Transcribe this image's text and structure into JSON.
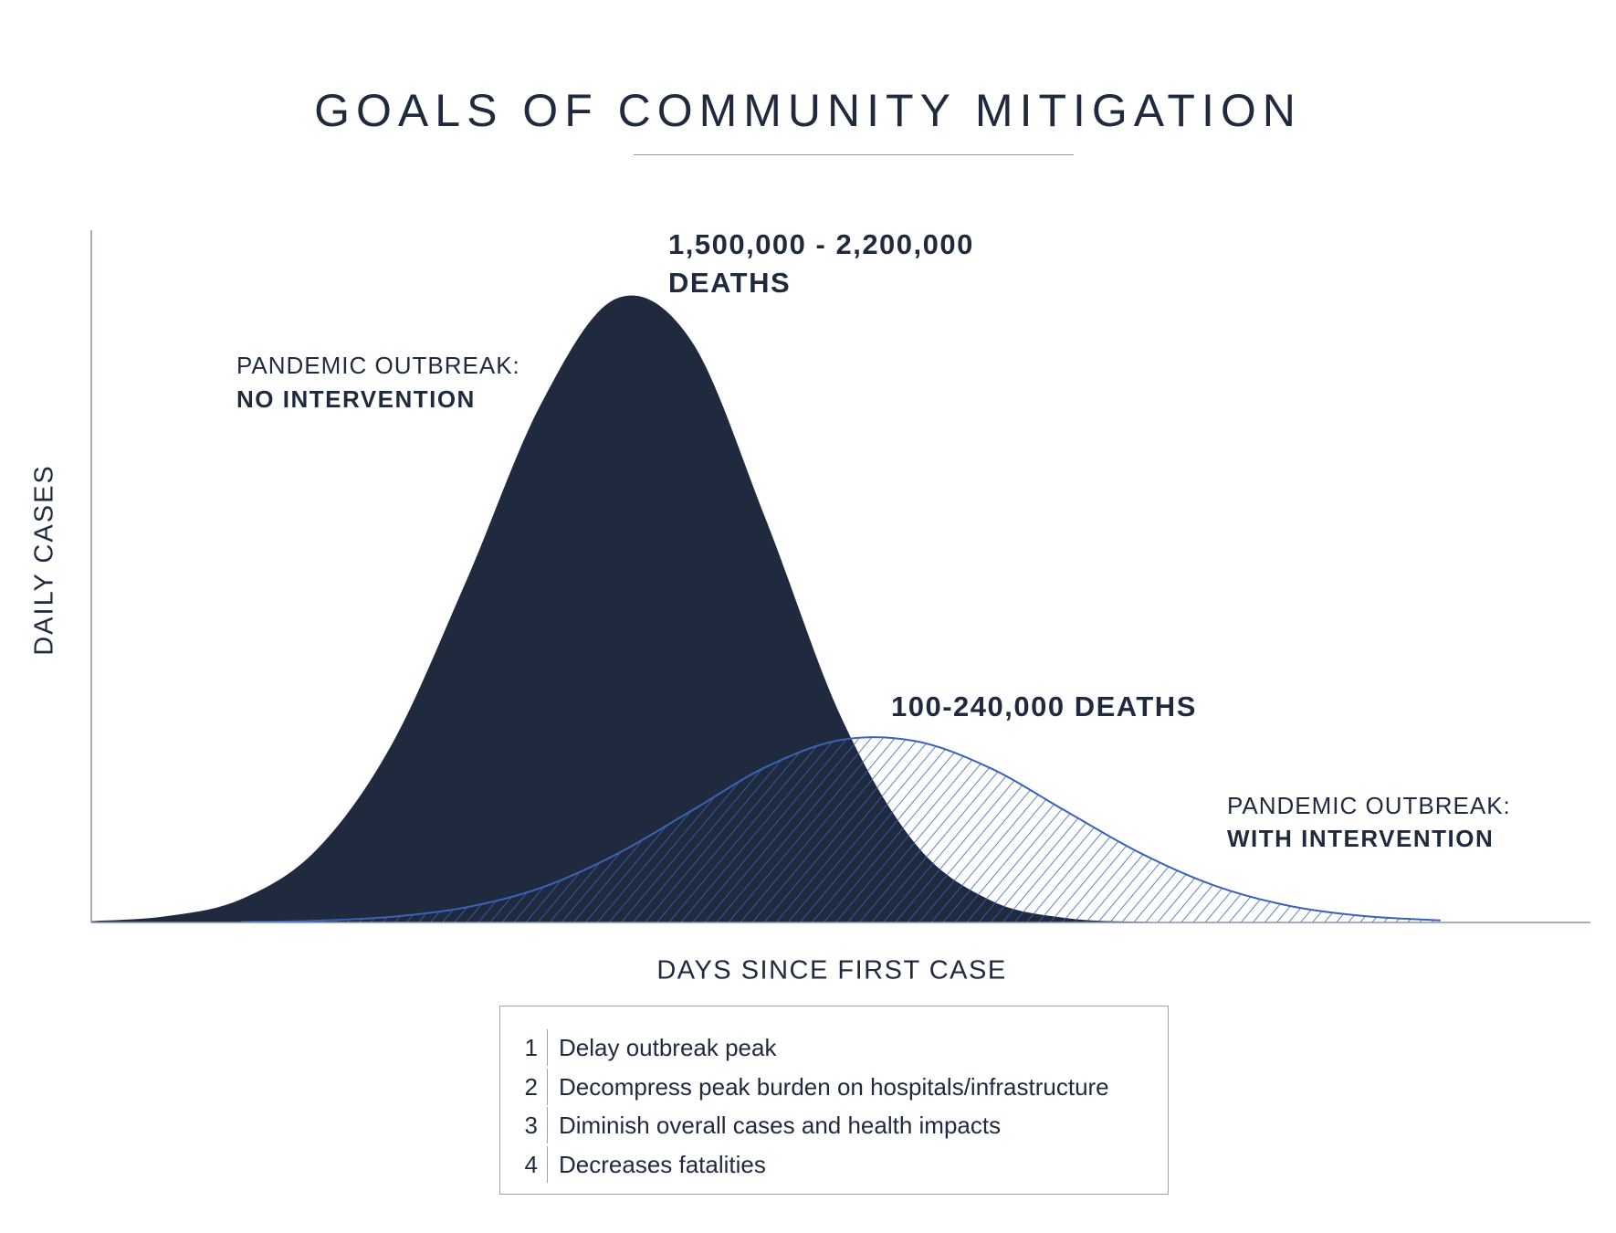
{
  "title": "GOALS OF COMMUNITY MITIGATION",
  "colors": {
    "no_intervention": "#1f2a3f",
    "with_intervention": "#3a63b8",
    "axis": "#8a93a3"
  },
  "annotations": {
    "no_intervention_deaths_line1": "1,500,000 - 2,200,000",
    "no_intervention_deaths_line2": "DEATHS",
    "no_intervention_label_line1": "PANDEMIC OUTBREAK:",
    "no_intervention_label_line2": "NO INTERVENTION",
    "with_intervention_deaths": "100-240,000 DEATHS",
    "with_intervention_label_line1": "PANDEMIC OUTBREAK:",
    "with_intervention_label_line2": "WITH INTERVENTION"
  },
  "legend": {
    "items": [
      {
        "num": "1",
        "text": "Delay outbreak peak"
      },
      {
        "num": "2",
        "text": "Decompress peak burden on hospitals/infrastructure"
      },
      {
        "num": "3",
        "text": "Diminish overall cases and health impacts"
      },
      {
        "num": "4",
        "text": "Decreases fatalities"
      }
    ]
  },
  "chart_data": {
    "type": "area",
    "title": "GOALS OF COMMUNITY MITIGATION",
    "xlabel": "DAYS SINCE FIRST CASE",
    "ylabel": "DAILY CASES",
    "xlim": [
      0,
      100
    ],
    "ylim": [
      0,
      110
    ],
    "grid": false,
    "x": [
      0,
      5,
      10,
      15,
      20,
      25,
      30,
      35,
      40,
      45,
      50,
      55,
      60,
      65,
      70,
      75,
      80,
      85,
      90,
      95,
      100
    ],
    "series": [
      {
        "name": "Pandemic outbreak: no intervention",
        "fill": "solid",
        "values": [
          0.2,
          1.0,
          3.7,
          11.5,
          28.1,
          54.2,
          82.4,
          99.1,
          92.5,
          64.0,
          32.7,
          12.4,
          3.5,
          0.7,
          0.1,
          0,
          0,
          0,
          0,
          0,
          0
        ]
      },
      {
        "name": "Pandemic outbreak: with intervention",
        "fill": "hatched",
        "values": [
          0,
          0,
          0.07,
          0.28,
          0.89,
          2.4,
          5.5,
          10.8,
          17.7,
          24.7,
          29.0,
          28.8,
          24.5,
          17.7,
          11.0,
          5.8,
          2.6,
          1.0,
          0.33,
          0.09,
          0.02
        ]
      }
    ]
  }
}
